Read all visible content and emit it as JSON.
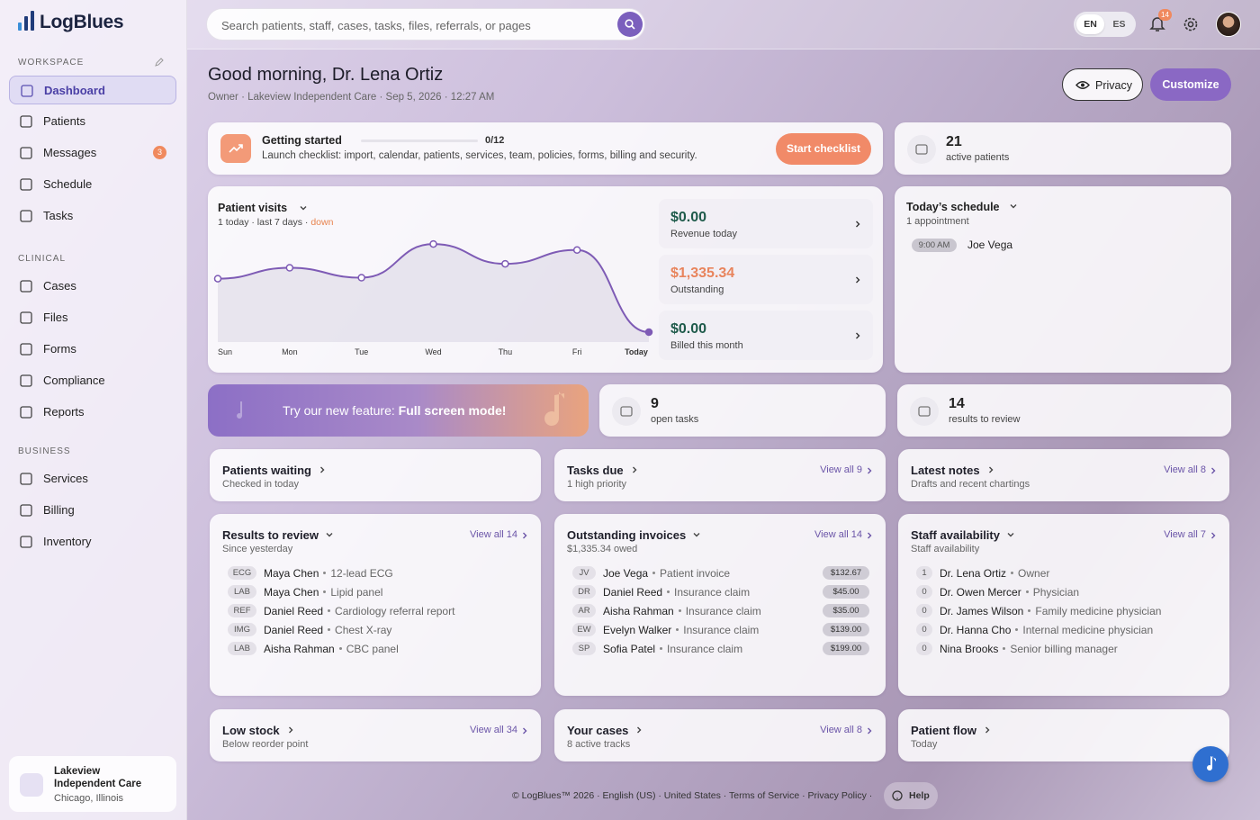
{
  "brand": "LogBlues",
  "search_placeholder": "Search patients, staff, cases, tasks, files, referrals, or pages",
  "languages": [
    "EN",
    "ES"
  ],
  "notification_count": "14",
  "sidebar": {
    "sections": [
      {
        "title": "WORKSPACE",
        "items": [
          {
            "label": "Dashboard"
          },
          {
            "label": "Patients"
          },
          {
            "label": "Messages",
            "badge": "3"
          },
          {
            "label": "Schedule"
          },
          {
            "label": "Tasks"
          }
        ]
      },
      {
        "title": "CLINICAL",
        "items": [
          {
            "label": "Cases"
          },
          {
            "label": "Files"
          },
          {
            "label": "Forms"
          },
          {
            "label": "Compliance"
          },
          {
            "label": "Reports"
          }
        ]
      },
      {
        "title": "BUSINESS",
        "items": [
          {
            "label": "Services"
          },
          {
            "label": "Billing"
          },
          {
            "label": "Inventory"
          }
        ]
      }
    ],
    "org": {
      "name": "Lakeview Independent Care",
      "location": "Chicago, Illinois"
    }
  },
  "greeting": "Good morning, Dr. Lena Ortiz",
  "subline": "Owner · Lakeview Independent Care · Sep 5, 2026 · 12:27 AM",
  "buttons": {
    "privacy": "Privacy",
    "customize": "Customize"
  },
  "getting_started": {
    "title": "Getting started",
    "progress": "0/12",
    "description": "Launch checklist: import, calendar, patients, services, team, policies, forms, billing and security.",
    "action": "Start checklist"
  },
  "active_patients": {
    "value": "21",
    "label": "active patients"
  },
  "patient_visits": {
    "title": "Patient visits",
    "summary": "1 today · last 7 days ·",
    "trend": "down"
  },
  "chart_data": {
    "type": "line",
    "categories": [
      "Sun",
      "Mon",
      "Tue",
      "Wed",
      "Thu",
      "Fri",
      "Today"
    ],
    "values": [
      6.4,
      7.5,
      6.5,
      9.9,
      7.9,
      9.3,
      1
    ],
    "ylim": [
      0,
      11
    ],
    "color": "#7e5bb5"
  },
  "stats": [
    {
      "value": "$0.00",
      "label": "Revenue today"
    },
    {
      "value": "$1,335.34",
      "label": "Outstanding"
    },
    {
      "value": "$0.00",
      "label": "Billed this month"
    }
  ],
  "todays_schedule": {
    "title": "Today’s schedule",
    "subtitle": "1 appointment",
    "appointments": [
      {
        "time": "9:00 AM",
        "name": "Joe Vega"
      }
    ]
  },
  "promo": {
    "text": "Try our new feature:",
    "highlight": "Full screen mode!"
  },
  "open_tasks": {
    "value": "9",
    "label": "open tasks"
  },
  "results_count": {
    "value": "14",
    "label": "results to review"
  },
  "row_cards": [
    {
      "title": "Patients waiting",
      "subtitle": "Checked in today"
    },
    {
      "title": "Tasks due",
      "subtitle": "1 high priority",
      "link": "View all 9"
    },
    {
      "title": "Latest notes",
      "subtitle": "Drafts and recent chartings",
      "link": "View all 8"
    }
  ],
  "results_to_review": {
    "title": "Results to review",
    "subtitle": "Since yesterday",
    "link": "View all 14",
    "items": [
      {
        "tag": "ECG",
        "name": "Maya Chen",
        "detail": "12-lead ECG"
      },
      {
        "tag": "LAB",
        "name": "Maya Chen",
        "detail": "Lipid panel"
      },
      {
        "tag": "REF",
        "name": "Daniel Reed",
        "detail": "Cardiology referral report"
      },
      {
        "tag": "IMG",
        "name": "Daniel Reed",
        "detail": "Chest X-ray"
      },
      {
        "tag": "LAB",
        "name": "Aisha Rahman",
        "detail": "CBC panel"
      }
    ]
  },
  "outstanding_invoices": {
    "title": "Outstanding invoices",
    "subtitle": "$1,335.34 owed",
    "link": "View all 14",
    "items": [
      {
        "tag": "JV",
        "name": "Joe Vega",
        "detail": "Patient invoice",
        "amount": "$132.67"
      },
      {
        "tag": "DR",
        "name": "Daniel Reed",
        "detail": "Insurance claim",
        "amount": "$45.00"
      },
      {
        "tag": "AR",
        "name": "Aisha Rahman",
        "detail": "Insurance claim",
        "amount": "$35.00"
      },
      {
        "tag": "EW",
        "name": "Evelyn Walker",
        "detail": "Insurance claim",
        "amount": "$139.00"
      },
      {
        "tag": "SP",
        "name": "Sofia Patel",
        "detail": "Insurance claim",
        "amount": "$199.00"
      }
    ]
  },
  "staff_availability": {
    "title": "Staff availability",
    "subtitle": "Staff availability",
    "link": "View all 7",
    "items": [
      {
        "tag": "1",
        "name": "Dr. Lena Ortiz",
        "detail": "Owner"
      },
      {
        "tag": "0",
        "name": "Dr. Owen Mercer",
        "detail": "Physician"
      },
      {
        "tag": "0",
        "name": "Dr. James Wilson",
        "detail": "Family medicine physician"
      },
      {
        "tag": "0",
        "name": "Dr. Hanna Cho",
        "detail": "Internal medicine physician"
      },
      {
        "tag": "0",
        "name": "Nina Brooks",
        "detail": "Senior billing manager"
      }
    ]
  },
  "bottom_cards": [
    {
      "title": "Low stock",
      "subtitle": "Below reorder point",
      "link": "View all 34"
    },
    {
      "title": "Your cases",
      "subtitle": "8 active tracks",
      "link": "View all 8"
    },
    {
      "title": "Patient flow",
      "subtitle": "Today"
    }
  ],
  "footer": {
    "text": "© LogBlues™ 2026 · English (US) · United States · Terms of Service · Privacy Policy ·",
    "help": "Help"
  }
}
